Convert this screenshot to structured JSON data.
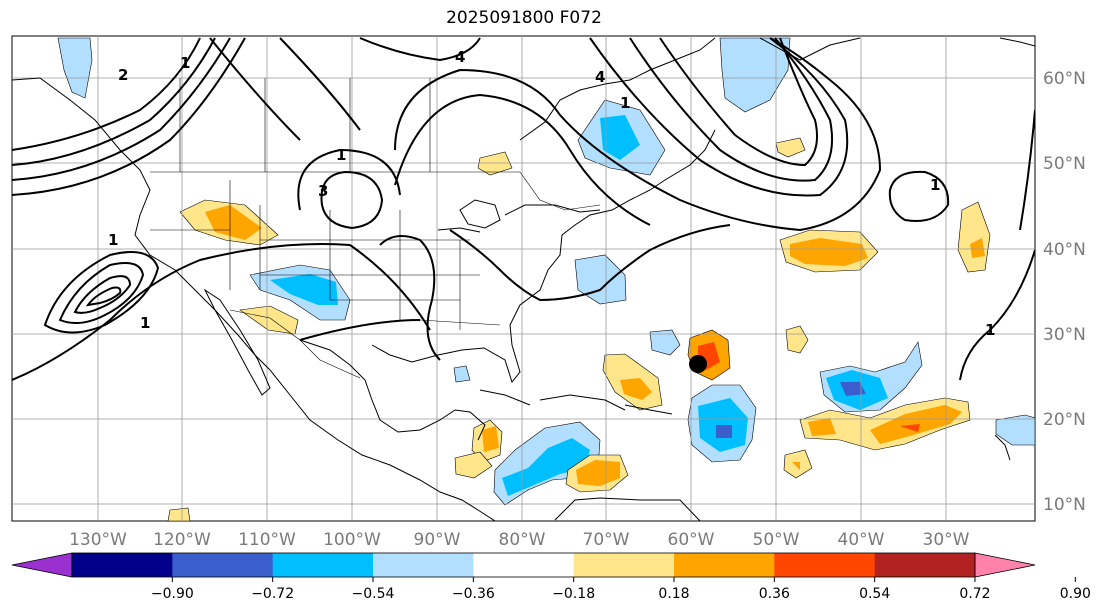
{
  "title": "2025091800 F072",
  "lon_labels": [
    "130°W",
    "120°W",
    "110°W",
    "100°W",
    "90°W",
    "80°W",
    "70°W",
    "60°W",
    "50°W",
    "40°W",
    "30°W"
  ],
  "lat_labels": [
    "60°N",
    "50°N",
    "40°N",
    "30°N",
    "20°N",
    "10°N"
  ],
  "colorbar": {
    "ticks": [
      "−0.90",
      "−0.72",
      "−0.54",
      "−0.36",
      "−0.18",
      "0.18",
      "0.36",
      "0.54",
      "0.72",
      "0.90"
    ],
    "colors": [
      "#9b30d0",
      "#00008b",
      "#3a5fcd",
      "#00bfff",
      "#b2dfff",
      "#ffffff",
      "#ffe68a",
      "#ffa500",
      "#ff4500",
      "#b22222",
      "#ff82ab"
    ]
  },
  "contour_labels": [
    "1",
    "1",
    "2",
    "4",
    "1",
    "3",
    "4",
    "1",
    "1",
    "1",
    "1"
  ],
  "marker": {
    "name": "storm-center"
  }
}
